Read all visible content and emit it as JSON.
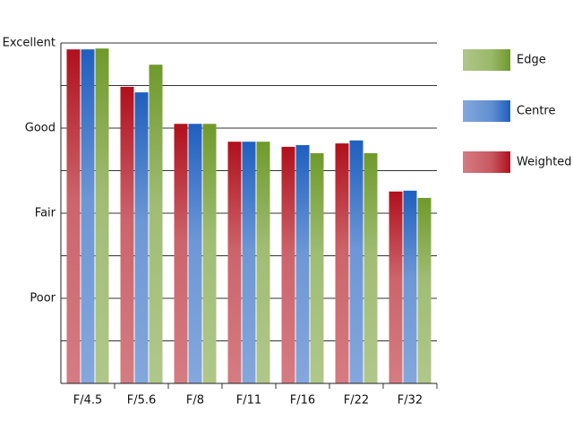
{
  "chart_data": {
    "type": "bar",
    "categories": [
      "F/4.5",
      "F/5.6",
      "F/8",
      "F/11",
      "F/16",
      "F/22",
      "F/32"
    ],
    "series": [
      {
        "name": "Weighted",
        "color": "#b0101c",
        "values": [
          7.85,
          6.97,
          6.1,
          5.68,
          5.56,
          5.64,
          4.51
        ]
      },
      {
        "name": "Centre",
        "color": "#1f5fbf",
        "values": [
          7.85,
          6.84,
          6.1,
          5.68,
          5.6,
          5.71,
          4.53
        ]
      },
      {
        "name": "Edge",
        "color": "#6f9a2a",
        "values": [
          7.87,
          7.49,
          6.1,
          5.68,
          5.41,
          5.41,
          4.36
        ]
      }
    ],
    "ylim": [
      0,
      8
    ],
    "yticks": [
      {
        "value": 2,
        "label": "Poor"
      },
      {
        "value": 4,
        "label": "Fair"
      },
      {
        "value": 6,
        "label": "Good"
      },
      {
        "value": 8,
        "label": "Excellent"
      }
    ],
    "minor_yticks": [
      1,
      3,
      5,
      7
    ],
    "grid": true,
    "legend": "right"
  }
}
